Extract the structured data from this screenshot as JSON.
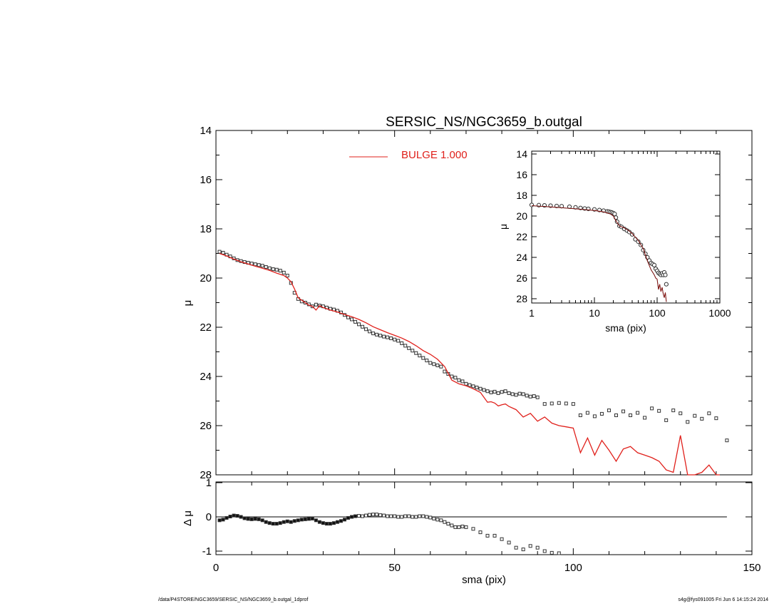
{
  "chart_data": [
    {
      "name": "main-profile",
      "type": "scatter",
      "title": "SERSIC_NS/NGC3659_b.outgal",
      "ylabel": "μ",
      "xlim": [
        0,
        150
      ],
      "ylim": [
        28,
        14
      ],
      "y_inverted": true,
      "yticks": [
        "14",
        "16",
        "18",
        "20",
        "22",
        "24",
        "26",
        "28"
      ],
      "legend": {
        "entries": [
          {
            "label": "BULGE  1.000",
            "color": "#e0201b"
          }
        ],
        "placement": "top-center"
      },
      "series": [
        {
          "name": "",
          "style": "points",
          "x": [
            1,
            2,
            3,
            4,
            5,
            6,
            7,
            8,
            9,
            10,
            11,
            12,
            13,
            14,
            15,
            16,
            17,
            18,
            19,
            20,
            21,
            22,
            23,
            24,
            25,
            26,
            27,
            28,
            29,
            30,
            31,
            32,
            33,
            34,
            35,
            36,
            37,
            38,
            39,
            40,
            41,
            42,
            43,
            44,
            45,
            46,
            47,
            48,
            49,
            50,
            51,
            52,
            53,
            54,
            55,
            56,
            57,
            58,
            59,
            60,
            61,
            62,
            63,
            64,
            65,
            66,
            67,
            68,
            69,
            70,
            71,
            72,
            73,
            74,
            75,
            76,
            77,
            78,
            79,
            80,
            81,
            82,
            83,
            84,
            85,
            86,
            87,
            88,
            89,
            90,
            92,
            94,
            96,
            98,
            100,
            102,
            104,
            106,
            108,
            110,
            112,
            114,
            116,
            118,
            120,
            122,
            124,
            126,
            128,
            130,
            132,
            134,
            136,
            138,
            140,
            143
          ],
          "y": [
            18.93,
            18.97,
            19.05,
            19.12,
            19.2,
            19.27,
            19.31,
            19.35,
            19.38,
            19.41,
            19.44,
            19.47,
            19.5,
            19.55,
            19.6,
            19.64,
            19.66,
            19.7,
            19.78,
            19.9,
            20.2,
            20.6,
            20.85,
            20.95,
            21.0,
            21.07,
            21.15,
            21.08,
            21.12,
            21.15,
            21.2,
            21.25,
            21.28,
            21.33,
            21.4,
            21.5,
            21.6,
            21.68,
            21.78,
            21.88,
            21.98,
            22.08,
            22.17,
            22.25,
            22.3,
            22.34,
            22.38,
            22.41,
            22.45,
            22.5,
            22.55,
            22.65,
            22.75,
            22.85,
            22.95,
            23.05,
            23.15,
            23.25,
            23.35,
            23.45,
            23.5,
            23.55,
            23.6,
            23.8,
            23.9,
            24.0,
            24.05,
            24.15,
            24.2,
            24.3,
            24.35,
            24.4,
            24.45,
            24.5,
            24.55,
            24.6,
            24.65,
            24.62,
            24.68,
            24.63,
            24.6,
            24.68,
            24.72,
            24.75,
            24.7,
            24.72,
            24.78,
            24.82,
            24.8,
            24.85,
            25.12,
            25.1,
            25.08,
            25.1,
            25.12,
            25.58,
            25.48,
            25.62,
            25.52,
            25.38,
            25.58,
            25.42,
            25.58,
            25.48,
            25.68,
            25.3,
            25.4,
            25.78,
            25.38,
            25.5,
            25.85,
            25.6,
            25.72,
            25.5,
            25.7,
            26.6
          ]
        },
        {
          "name": "BULGE  1.000",
          "style": "line",
          "color": "#e0201b",
          "x": [
            1,
            3,
            5,
            7,
            9,
            11,
            13,
            15,
            17,
            19,
            20,
            21,
            22,
            23,
            24,
            25,
            26,
            27,
            28,
            29,
            30,
            32,
            34,
            36,
            38,
            40,
            42,
            44,
            46,
            48,
            50,
            52,
            54,
            56,
            58,
            60,
            62,
            64,
            66,
            68,
            70,
            72,
            74,
            76,
            77,
            78,
            79,
            80,
            81,
            82,
            84,
            86,
            88,
            90,
            92,
            94,
            96,
            98,
            100,
            102,
            104,
            106,
            108,
            110,
            112,
            114,
            116,
            118,
            120,
            122,
            124,
            126,
            128,
            130,
            132,
            134,
            136,
            138,
            140,
            141
          ],
          "y": [
            19.0,
            19.1,
            19.23,
            19.34,
            19.43,
            19.52,
            19.6,
            19.69,
            19.8,
            19.9,
            20.0,
            20.15,
            20.45,
            20.8,
            20.9,
            21.0,
            21.1,
            21.15,
            21.3,
            21.12,
            21.2,
            21.3,
            21.38,
            21.48,
            21.57,
            21.68,
            21.82,
            21.98,
            22.1,
            22.22,
            22.33,
            22.44,
            22.58,
            22.75,
            22.95,
            23.1,
            23.3,
            23.6,
            24.15,
            24.3,
            24.38,
            24.5,
            24.65,
            25.05,
            25.03,
            25.08,
            25.2,
            25.15,
            25.12,
            25.22,
            25.35,
            25.65,
            25.5,
            25.82,
            25.65,
            25.9,
            26.0,
            26.05,
            26.1,
            27.1,
            26.5,
            27.2,
            26.6,
            27.0,
            27.45,
            26.95,
            26.85,
            27.1,
            27.2,
            27.3,
            27.45,
            27.8,
            27.9,
            26.4,
            28.2,
            28.25,
            27.9,
            27.6,
            28.3,
            28.4
          ]
        }
      ]
    },
    {
      "name": "residuals",
      "type": "scatter",
      "xlabel": "sma (pix)",
      "ylabel": "Δ μ",
      "xlim": [
        0,
        150
      ],
      "ylim": [
        -1,
        1
      ],
      "xticks": [
        "0",
        "50",
        "100",
        "150"
      ],
      "yticks": [
        "1",
        "0",
        "-1"
      ],
      "reference_line": 0,
      "series": [
        {
          "name": "",
          "x": [
            1,
            2,
            3,
            4,
            5,
            6,
            7,
            8,
            9,
            10,
            11,
            12,
            13,
            14,
            15,
            16,
            17,
            18,
            19,
            20,
            21,
            22,
            23,
            24,
            25,
            26,
            27,
            28,
            29,
            30,
            31,
            32,
            33,
            34,
            35,
            36,
            37,
            38,
            39,
            40,
            41,
            42,
            43,
            44,
            45,
            46,
            47,
            48,
            49,
            50,
            51,
            52,
            53,
            54,
            55,
            56,
            57,
            58,
            59,
            60,
            61,
            62,
            63,
            64,
            65,
            66,
            67,
            68,
            69,
            70,
            72,
            74,
            76,
            78,
            80,
            82,
            84,
            86,
            88,
            90,
            92,
            94,
            96
          ],
          "y": [
            -0.1,
            -0.08,
            -0.03,
            0.01,
            0.04,
            0.03,
            0.0,
            -0.04,
            -0.06,
            -0.07,
            -0.06,
            -0.07,
            -0.1,
            -0.15,
            -0.18,
            -0.2,
            -0.2,
            -0.18,
            -0.15,
            -0.13,
            -0.15,
            -0.12,
            -0.1,
            -0.08,
            -0.07,
            -0.06,
            -0.05,
            -0.1,
            -0.15,
            -0.18,
            -0.2,
            -0.2,
            -0.18,
            -0.15,
            -0.12,
            -0.08,
            -0.03,
            0.0,
            0.02,
            0.03,
            0.02,
            0.04,
            0.06,
            0.07,
            0.07,
            0.05,
            0.04,
            0.02,
            0.02,
            0.02,
            0.0,
            0.0,
            0.02,
            0.02,
            0.0,
            0.0,
            0.02,
            0.02,
            0.0,
            -0.02,
            -0.05,
            -0.08,
            -0.1,
            -0.15,
            -0.2,
            -0.25,
            -0.3,
            -0.3,
            -0.28,
            -0.3,
            -0.35,
            -0.45,
            -0.55,
            -0.55,
            -0.65,
            -0.75,
            -0.9,
            -0.95,
            -0.85,
            -0.9,
            -1.0,
            -1.05,
            -1.1
          ]
        }
      ]
    },
    {
      "name": "inset-log-profile",
      "type": "scatter",
      "xlabel": "sma (pix)",
      "ylabel": "μ",
      "xscale": "log",
      "xlim": [
        1,
        1000
      ],
      "ylim": [
        28,
        14
      ],
      "y_inverted": true,
      "xticks": [
        "1",
        "10",
        "100",
        "1000"
      ],
      "yticks": [
        "14",
        "16",
        "18",
        "20",
        "22",
        "24",
        "26",
        "28"
      ],
      "series": [
        {
          "name": "",
          "style": "points",
          "x": [
            1,
            1.3,
            1.6,
            2,
            2.5,
            3,
            4,
            5,
            6,
            7,
            8,
            10,
            12,
            14,
            16,
            17,
            18,
            19,
            20,
            21,
            22,
            23,
            25,
            27,
            30,
            33,
            36,
            40,
            45,
            50,
            55,
            60,
            65,
            70,
            75,
            80,
            85,
            90,
            95,
            100,
            105,
            110,
            115,
            120,
            125,
            130,
            135,
            140
          ],
          "y": [
            18.93,
            18.95,
            18.97,
            19.0,
            19.03,
            19.05,
            19.1,
            19.16,
            19.22,
            19.27,
            19.31,
            19.36,
            19.42,
            19.48,
            19.55,
            19.58,
            19.62,
            19.66,
            19.72,
            19.8,
            20.15,
            20.55,
            20.95,
            21.05,
            21.25,
            21.4,
            21.55,
            21.78,
            22.25,
            22.48,
            22.8,
            23.3,
            23.65,
            24.0,
            24.3,
            24.55,
            24.65,
            24.75,
            25.1,
            25.3,
            25.5,
            25.6,
            25.7,
            25.55,
            25.7,
            25.45,
            25.7,
            26.6
          ]
        },
        {
          "name": "",
          "style": "line",
          "color": "#e0201b",
          "x": [
            1,
            2,
            3,
            5,
            7,
            10,
            14,
            18,
            20,
            22,
            25,
            30,
            35,
            40,
            50,
            60,
            70,
            80,
            90,
            95,
            100,
            105,
            110,
            115,
            120,
            125,
            130,
            135,
            140
          ],
          "y": [
            19.0,
            19.12,
            19.2,
            19.3,
            19.38,
            19.46,
            19.6,
            19.8,
            20.0,
            20.45,
            20.95,
            21.15,
            21.4,
            21.7,
            22.35,
            23.15,
            24.35,
            25.2,
            25.7,
            26.0,
            26.1,
            27.1,
            26.6,
            27.3,
            26.9,
            27.5,
            27.9,
            27.4,
            28.3
          ]
        }
      ]
    }
  ],
  "footer": {
    "left": "/data/P4STORE/NGC3659/SERSIC_NS/NGC3659_b.outgal_1dprof",
    "right": "s4g@fys091005  Fri Jun  6 14:15:24 2014"
  }
}
